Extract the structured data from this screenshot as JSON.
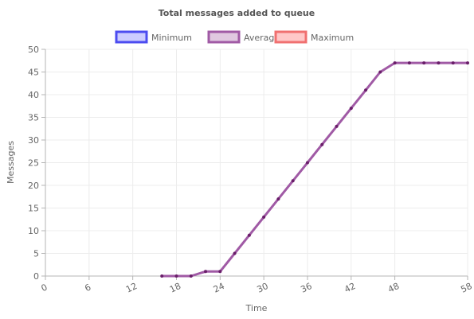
{
  "chart_data": {
    "type": "line",
    "title": "Total messages added to queue",
    "xlabel": "Time",
    "ylabel": "Messages",
    "xlim": [
      0,
      58
    ],
    "ylim": [
      0,
      50
    ],
    "x_ticks": [
      0,
      6,
      12,
      18,
      24,
      30,
      36,
      42,
      48,
      58
    ],
    "y_ticks": [
      0,
      5,
      10,
      15,
      20,
      25,
      30,
      35,
      40,
      45,
      50
    ],
    "grid": true,
    "legend_position": "top",
    "series": [
      {
        "name": "Minimum",
        "color": "#4c4cf0",
        "fill": "#ccccff",
        "x": [],
        "y": []
      },
      {
        "name": "Average",
        "color": "#a05aa5",
        "fill": "#e0c8e0",
        "point_color": "#6a1e6a",
        "x": [
          16,
          18,
          20,
          22,
          24,
          26,
          28,
          30,
          32,
          34,
          36,
          38,
          40,
          42,
          44,
          46,
          48,
          50,
          52,
          54,
          56,
          58
        ],
        "y": [
          0,
          0,
          0,
          1,
          1,
          5,
          9,
          13,
          17,
          21,
          25,
          29,
          33,
          37,
          41,
          45,
          47,
          47,
          47,
          47,
          47,
          47
        ]
      },
      {
        "name": "Maximum",
        "color": "#f07070",
        "fill": "#ffc8c8",
        "x": [],
        "y": []
      }
    ]
  }
}
